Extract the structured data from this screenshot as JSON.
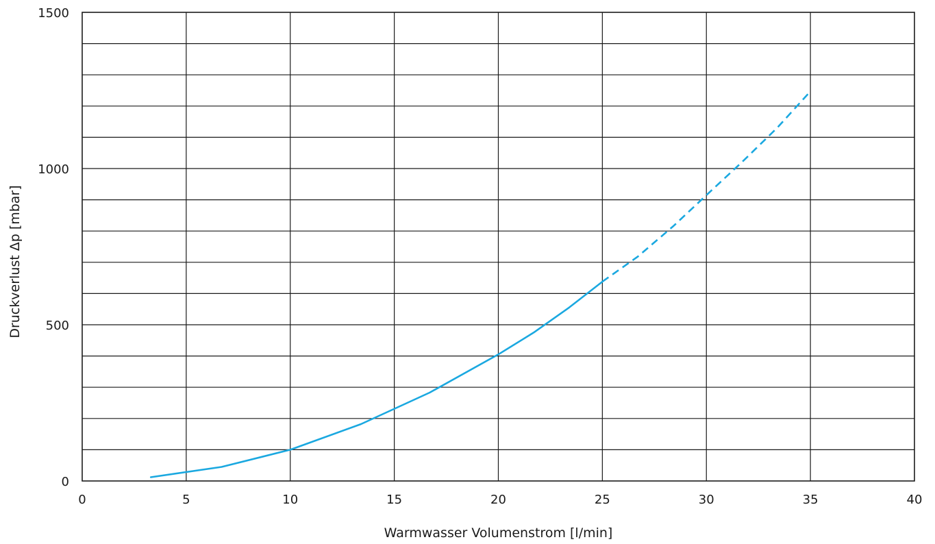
{
  "chart_data": {
    "type": "line",
    "title": "",
    "xlabel": "Warmwasser Volumenstrom [l/min]",
    "ylabel": "Druckverlust Δp [mbar]",
    "xlim": [
      0,
      40
    ],
    "ylim": [
      0,
      1500
    ],
    "x_ticks": [
      0,
      5,
      10,
      15,
      20,
      25,
      30,
      35,
      40
    ],
    "x_tick_labels": [
      "0",
      "5",
      "10",
      "15",
      "20",
      "25",
      "30",
      "35",
      "40"
    ],
    "y_ticks": [
      0,
      500,
      1000,
      1500
    ],
    "y_tick_labels": [
      "0",
      "500",
      "1000",
      "1500"
    ],
    "x_grid_step": 5,
    "y_grid_step": 100,
    "grid": true,
    "legend": "none",
    "series": [
      {
        "line_style": "solid",
        "color": "#1aa8e0",
        "x": [
          3.3,
          6.7,
          10.0,
          13.4,
          16.7,
          20.0,
          21.7,
          23.4,
          25.0
        ],
        "y": [
          12,
          45,
          100,
          182,
          283,
          405,
          475,
          555,
          638
        ]
      },
      {
        "line_style": "dashed",
        "color": "#1aa8e0",
        "x": [
          25.0,
          26.7,
          28.4,
          30.0,
          31.7,
          33.4,
          34.9
        ],
        "y": [
          638,
          718,
          815,
          915,
          1020,
          1130,
          1240
        ]
      }
    ]
  }
}
